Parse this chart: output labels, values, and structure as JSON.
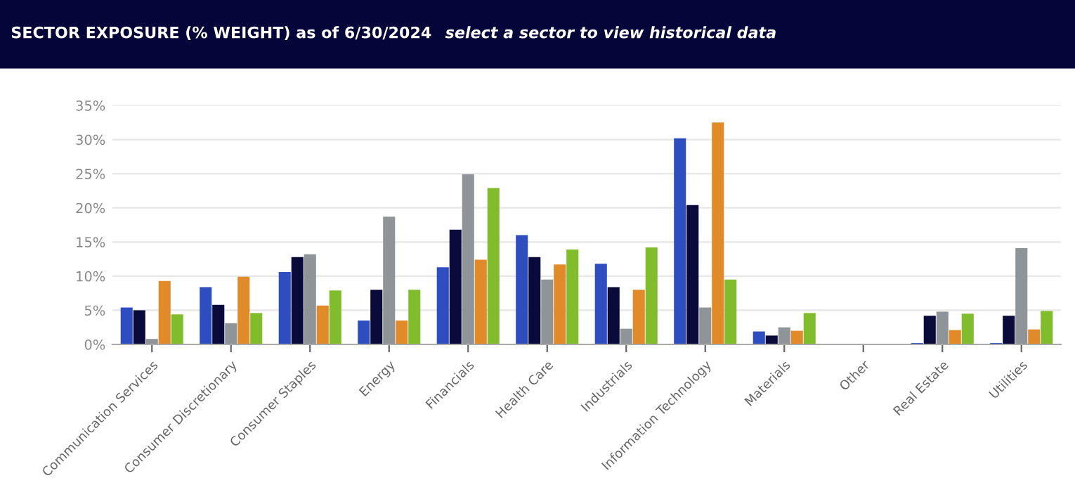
{
  "chart_data": {
    "type": "bar",
    "title": "SECTOR EXPOSURE (% WEIGHT) as of 6/30/2024",
    "subtitle": "select a sector to view historical data",
    "categories": [
      "Communication Services",
      "Consumer Discretionary",
      "Consumer Staples",
      "Energy",
      "Financials",
      "Health Care",
      "Industrials",
      "Information Technology",
      "Materials",
      "Other",
      "Real Estate",
      "Utilities"
    ],
    "series": [
      {
        "color": "#2e4dbf",
        "values": [
          5.4,
          8.4,
          10.6,
          3.5,
          11.3,
          16.0,
          11.8,
          30.2,
          1.9,
          null,
          0.2,
          0.2
        ]
      },
      {
        "color": "#0a0a3a",
        "values": [
          5.0,
          5.8,
          12.8,
          8.0,
          16.8,
          12.8,
          8.4,
          20.4,
          1.3,
          null,
          4.2,
          4.2
        ]
      },
      {
        "color": "#8f9499",
        "values": [
          0.8,
          3.1,
          13.2,
          18.7,
          24.9,
          9.5,
          2.3,
          5.4,
          2.5,
          null,
          4.8,
          14.1
        ]
      },
      {
        "color": "#e08a2a",
        "values": [
          9.3,
          9.9,
          5.7,
          3.5,
          12.4,
          11.7,
          8.0,
          32.5,
          2.0,
          null,
          2.1,
          2.2
        ]
      },
      {
        "color": "#80bc2c",
        "values": [
          4.4,
          4.6,
          7.9,
          8.0,
          22.9,
          13.9,
          14.2,
          9.5,
          4.6,
          null,
          4.5,
          4.9
        ]
      }
    ],
    "ylim": [
      0,
      35
    ],
    "yticks": [
      {
        "value": 0,
        "label": "0%"
      },
      {
        "value": 5,
        "label": "5%"
      },
      {
        "value": 10,
        "label": "10%"
      },
      {
        "value": 15,
        "label": "15%"
      },
      {
        "value": 20,
        "label": "20%"
      },
      {
        "value": 25,
        "label": "25%"
      },
      {
        "value": 30,
        "label": "30%"
      },
      {
        "value": 35,
        "label": "35%"
      }
    ],
    "grid": "y"
  }
}
